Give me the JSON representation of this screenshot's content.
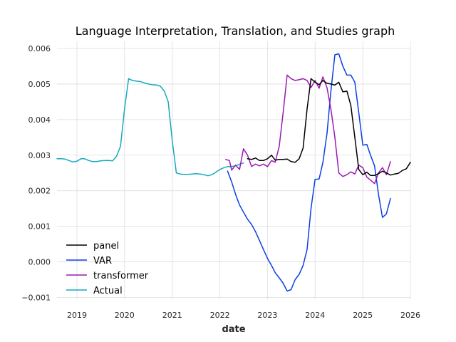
{
  "chart_data": {
    "type": "line",
    "title": "Language Interpretation, Translation, and Studies graph",
    "xlabel": "date",
    "ylabel": "",
    "xlim": [
      "2018-08-01",
      "2026-01-01"
    ],
    "ylim": [
      -0.00105,
      0.0062
    ],
    "x_ticks": [
      "2019",
      "2020",
      "2021",
      "2022",
      "2023",
      "2024",
      "2025",
      "2026"
    ],
    "y_ticks": [
      -0.001,
      0.0,
      0.001,
      0.002,
      0.003,
      0.004,
      0.005,
      0.006
    ],
    "y_tick_labels": [
      "−0.001",
      "0.000",
      "0.001",
      "0.002",
      "0.003",
      "0.004",
      "0.005",
      "0.006"
    ],
    "grid": true,
    "legend_position": "lower-left",
    "series": [
      {
        "name": "panel",
        "color": "#000000",
        "points": [
          [
            "2022-08-01",
            0.0029
          ],
          [
            "2022-09-01",
            0.00288
          ],
          [
            "2022-10-01",
            0.00292
          ],
          [
            "2022-11-01",
            0.00285
          ],
          [
            "2022-12-01",
            0.00285
          ],
          [
            "2023-01-01",
            0.0029
          ],
          [
            "2023-02-01",
            0.003
          ],
          [
            "2023-03-01",
            0.00286
          ],
          [
            "2023-04-01",
            0.00288
          ],
          [
            "2023-05-01",
            0.00288
          ],
          [
            "2023-06-01",
            0.00289
          ],
          [
            "2023-07-01",
            0.00282
          ],
          [
            "2023-08-01",
            0.0028
          ],
          [
            "2023-09-01",
            0.0029
          ],
          [
            "2023-10-01",
            0.0032
          ],
          [
            "2023-11-01",
            0.0043
          ],
          [
            "2023-12-01",
            0.00515
          ],
          [
            "2024-01-01",
            0.00505
          ],
          [
            "2024-02-01",
            0.00498
          ],
          [
            "2024-03-01",
            0.0051
          ],
          [
            "2024-04-01",
            0.00502
          ],
          [
            "2024-05-01",
            0.005
          ],
          [
            "2024-06-01",
            0.00497
          ],
          [
            "2024-07-01",
            0.00505
          ],
          [
            "2024-08-01",
            0.00478
          ],
          [
            "2024-09-01",
            0.0048
          ],
          [
            "2024-10-01",
            0.0044
          ],
          [
            "2024-11-01",
            0.0035
          ],
          [
            "2024-12-01",
            0.0026
          ],
          [
            "2025-01-01",
            0.00245
          ],
          [
            "2025-02-01",
            0.00252
          ],
          [
            "2025-03-01",
            0.00243
          ],
          [
            "2025-04-01",
            0.00243
          ],
          [
            "2025-05-01",
            0.00248
          ],
          [
            "2025-06-01",
            0.00255
          ],
          [
            "2025-07-01",
            0.0025
          ],
          [
            "2025-08-01",
            0.00244
          ],
          [
            "2025-09-01",
            0.00247
          ],
          [
            "2025-10-01",
            0.00249
          ],
          [
            "2025-11-01",
            0.00257
          ],
          [
            "2025-12-01",
            0.00262
          ],
          [
            "2026-01-01",
            0.0028
          ]
        ]
      },
      {
        "name": "VAR",
        "color": "#0b3fe6",
        "points": [
          [
            "2022-03-01",
            0.00255
          ],
          [
            "2022-04-01",
            0.00225
          ],
          [
            "2022-05-01",
            0.0019
          ],
          [
            "2022-06-01",
            0.0016
          ],
          [
            "2022-07-01",
            0.0014
          ],
          [
            "2022-08-01",
            0.0012
          ],
          [
            "2022-09-01",
            0.00105
          ],
          [
            "2022-10-01",
            0.00085
          ],
          [
            "2022-11-01",
            0.0006
          ],
          [
            "2022-12-01",
            0.00035
          ],
          [
            "2023-01-01",
            0.0001
          ],
          [
            "2023-02-01",
            -0.0001
          ],
          [
            "2023-03-01",
            -0.0003
          ],
          [
            "2023-04-01",
            -0.00045
          ],
          [
            "2023-05-01",
            -0.0006
          ],
          [
            "2023-06-01",
            -0.00082
          ],
          [
            "2023-07-01",
            -0.00078
          ],
          [
            "2023-08-01",
            -0.0005
          ],
          [
            "2023-09-01",
            -0.00035
          ],
          [
            "2023-10-01",
            -0.0001
          ],
          [
            "2023-11-01",
            0.00035
          ],
          [
            "2023-12-01",
            0.0015
          ],
          [
            "2024-01-01",
            0.00232
          ],
          [
            "2024-02-01",
            0.00233
          ],
          [
            "2024-03-01",
            0.0028
          ],
          [
            "2024-04-01",
            0.0036
          ],
          [
            "2024-05-01",
            0.0048
          ],
          [
            "2024-06-01",
            0.00582
          ],
          [
            "2024-07-01",
            0.00585
          ],
          [
            "2024-08-01",
            0.0055
          ],
          [
            "2024-09-01",
            0.00525
          ],
          [
            "2024-10-01",
            0.00525
          ],
          [
            "2024-11-01",
            0.00505
          ],
          [
            "2024-12-01",
            0.0042
          ],
          [
            "2025-01-01",
            0.00328
          ],
          [
            "2025-02-01",
            0.0033
          ],
          [
            "2025-03-01",
            0.003
          ],
          [
            "2025-04-01",
            0.0027
          ],
          [
            "2025-05-01",
            0.0019
          ],
          [
            "2025-06-01",
            0.00125
          ],
          [
            "2025-07-01",
            0.00135
          ],
          [
            "2025-08-01",
            0.00178
          ]
        ]
      },
      {
        "name": "transformer",
        "color": "#9b19b3",
        "points": [
          [
            "2022-02-15",
            0.00288
          ],
          [
            "2022-03-15",
            0.00285
          ],
          [
            "2022-04-01",
            0.00258
          ],
          [
            "2022-05-01",
            0.00272
          ],
          [
            "2022-06-01",
            0.0026
          ],
          [
            "2022-07-01",
            0.00318
          ],
          [
            "2022-08-01",
            0.003
          ],
          [
            "2022-09-01",
            0.00268
          ],
          [
            "2022-10-01",
            0.00275
          ],
          [
            "2022-11-01",
            0.0027
          ],
          [
            "2022-12-01",
            0.00275
          ],
          [
            "2023-01-01",
            0.00268
          ],
          [
            "2023-02-01",
            0.00285
          ],
          [
            "2023-03-01",
            0.0028
          ],
          [
            "2023-04-01",
            0.00325
          ],
          [
            "2023-05-01",
            0.0042
          ],
          [
            "2023-06-01",
            0.00525
          ],
          [
            "2023-07-01",
            0.00515
          ],
          [
            "2023-08-01",
            0.0051
          ],
          [
            "2023-09-01",
            0.00512
          ],
          [
            "2023-10-01",
            0.00515
          ],
          [
            "2023-11-01",
            0.0051
          ],
          [
            "2023-12-01",
            0.0049
          ],
          [
            "2024-01-01",
            0.0051
          ],
          [
            "2024-02-01",
            0.00488
          ],
          [
            "2024-03-01",
            0.0052
          ],
          [
            "2024-04-01",
            0.0049
          ],
          [
            "2024-05-01",
            0.0043
          ],
          [
            "2024-06-01",
            0.0035
          ],
          [
            "2024-07-01",
            0.0025
          ],
          [
            "2024-08-01",
            0.0024
          ],
          [
            "2024-09-01",
            0.00245
          ],
          [
            "2024-10-01",
            0.00253
          ],
          [
            "2024-11-01",
            0.00247
          ],
          [
            "2024-12-01",
            0.00272
          ],
          [
            "2025-01-01",
            0.00265
          ],
          [
            "2025-02-01",
            0.00238
          ],
          [
            "2025-03-01",
            0.0023
          ],
          [
            "2025-04-01",
            0.0022
          ],
          [
            "2025-05-01",
            0.0025
          ],
          [
            "2025-06-01",
            0.00265
          ],
          [
            "2025-07-01",
            0.00245
          ],
          [
            "2025-08-01",
            0.00282
          ]
        ]
      },
      {
        "name": "Actual",
        "color": "#17a9bd",
        "points": [
          [
            "2018-08-01",
            0.0029
          ],
          [
            "2018-09-01",
            0.0029
          ],
          [
            "2018-10-01",
            0.00289
          ],
          [
            "2018-11-01",
            0.00285
          ],
          [
            "2018-12-01",
            0.00281
          ],
          [
            "2019-01-01",
            0.00283
          ],
          [
            "2019-02-01",
            0.0029
          ],
          [
            "2019-03-01",
            0.0029
          ],
          [
            "2019-04-01",
            0.00285
          ],
          [
            "2019-05-01",
            0.00282
          ],
          [
            "2019-06-01",
            0.00282
          ],
          [
            "2019-07-01",
            0.00284
          ],
          [
            "2019-08-01",
            0.00285
          ],
          [
            "2019-09-01",
            0.00285
          ],
          [
            "2019-10-01",
            0.00284
          ],
          [
            "2019-11-01",
            0.00297
          ],
          [
            "2019-12-01",
            0.00325
          ],
          [
            "2020-01-01",
            0.0043
          ],
          [
            "2020-02-01",
            0.00515
          ],
          [
            "2020-03-01",
            0.0051
          ],
          [
            "2020-04-01",
            0.00508
          ],
          [
            "2020-05-01",
            0.00507
          ],
          [
            "2020-06-01",
            0.00503
          ],
          [
            "2020-07-01",
            0.005
          ],
          [
            "2020-08-01",
            0.00498
          ],
          [
            "2020-09-01",
            0.00497
          ],
          [
            "2020-10-01",
            0.00494
          ],
          [
            "2020-11-01",
            0.0048
          ],
          [
            "2020-12-01",
            0.0045
          ],
          [
            "2021-01-01",
            0.0034
          ],
          [
            "2021-02-01",
            0.0025
          ],
          [
            "2021-03-01",
            0.00247
          ],
          [
            "2021-04-01",
            0.00246
          ],
          [
            "2021-05-01",
            0.00246
          ],
          [
            "2021-06-01",
            0.00247
          ],
          [
            "2021-07-01",
            0.00248
          ],
          [
            "2021-08-01",
            0.00247
          ],
          [
            "2021-09-01",
            0.00245
          ],
          [
            "2021-10-01",
            0.00242
          ],
          [
            "2021-11-01",
            0.00245
          ],
          [
            "2021-12-01",
            0.00252
          ],
          [
            "2022-01-01",
            0.0026
          ],
          [
            "2022-02-01",
            0.00265
          ],
          [
            "2022-03-01",
            0.00268
          ],
          [
            "2022-04-01",
            0.00268
          ],
          [
            "2022-05-01",
            0.0027
          ],
          [
            "2022-06-01",
            0.00275
          ],
          [
            "2022-07-01",
            0.00278
          ]
        ]
      }
    ]
  }
}
